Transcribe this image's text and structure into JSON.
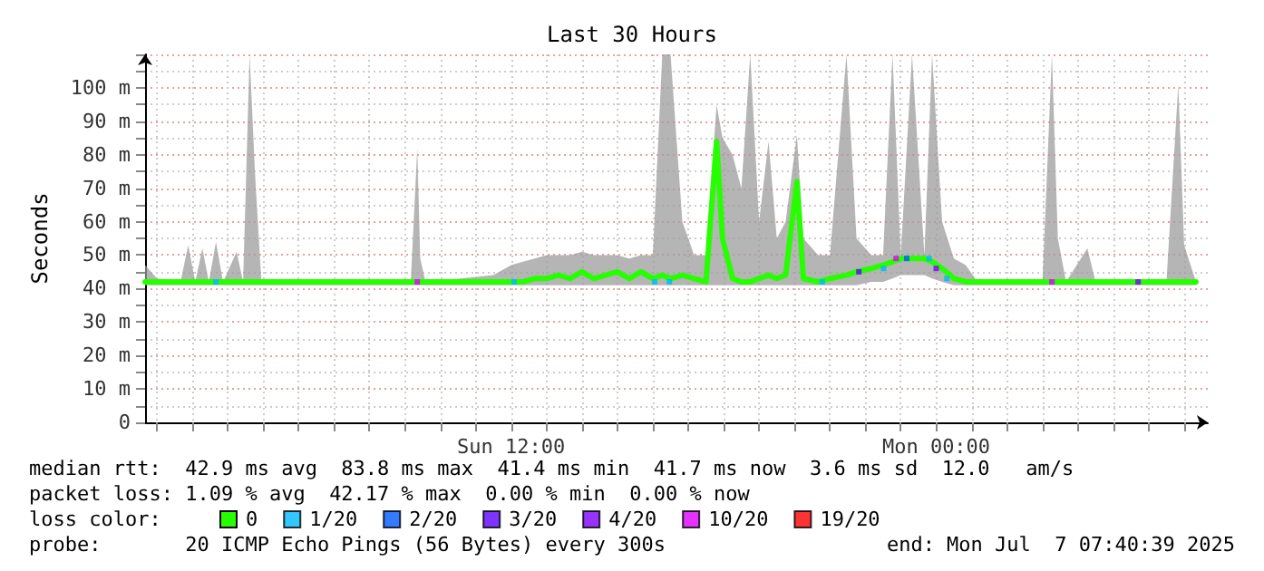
{
  "chart_data": {
    "type": "line",
    "title": "Last 30 Hours",
    "ylabel": "Seconds",
    "legend_title": "loss color:",
    "legend": "bottom",
    "grid": true,
    "line_style": "solid",
    "xlim": [
      "2025-07-06T01:40",
      "2025-07-07T07:40"
    ],
    "xticks": [
      {
        "value": "2025-07-06T02:00",
        "label": null
      },
      {
        "value": "2025-07-06T03:00",
        "label": null
      },
      {
        "value": "2025-07-06T04:00",
        "label": null
      },
      {
        "value": "2025-07-06T05:00",
        "label": null
      },
      {
        "value": "2025-07-06T06:00",
        "label": null
      },
      {
        "value": "2025-07-06T07:00",
        "label": null
      },
      {
        "value": "2025-07-06T08:00",
        "label": null
      },
      {
        "value": "2025-07-06T09:00",
        "label": null
      },
      {
        "value": "2025-07-06T10:00",
        "label": null
      },
      {
        "value": "2025-07-06T11:00",
        "label": null
      },
      {
        "value": "2025-07-06T12:00",
        "label": "Sun 12:00"
      },
      {
        "value": "2025-07-06T13:00",
        "label": null
      },
      {
        "value": "2025-07-06T14:00",
        "label": null
      },
      {
        "value": "2025-07-06T15:00",
        "label": null
      },
      {
        "value": "2025-07-06T16:00",
        "label": null
      },
      {
        "value": "2025-07-06T17:00",
        "label": null
      },
      {
        "value": "2025-07-06T18:00",
        "label": null
      },
      {
        "value": "2025-07-06T19:00",
        "label": null
      },
      {
        "value": "2025-07-06T20:00",
        "label": null
      },
      {
        "value": "2025-07-06T21:00",
        "label": null
      },
      {
        "value": "2025-07-06T22:00",
        "label": null
      },
      {
        "value": "2025-07-06T23:00",
        "label": null
      },
      {
        "value": "2025-07-07T00:00",
        "label": "Mon 00:00"
      },
      {
        "value": "2025-07-07T01:00",
        "label": null
      },
      {
        "value": "2025-07-07T02:00",
        "label": null
      },
      {
        "value": "2025-07-07T03:00",
        "label": null
      },
      {
        "value": "2025-07-07T04:00",
        "label": null
      },
      {
        "value": "2025-07-07T05:00",
        "label": null
      },
      {
        "value": "2025-07-07T06:00",
        "label": null
      },
      {
        "value": "2025-07-07T07:00",
        "label": null
      }
    ],
    "ylim": [
      0,
      110
    ],
    "yticks": [
      0,
      {
        "value": 5,
        "label": null
      },
      {
        "value": 10,
        "label": "10 m"
      },
      {
        "value": 15,
        "label": null
      },
      {
        "value": 20,
        "label": "20 m"
      },
      {
        "value": 25,
        "label": null
      },
      {
        "value": 30,
        "label": "30 m"
      },
      {
        "value": 35,
        "label": null
      },
      {
        "value": 40,
        "label": "40 m"
      },
      {
        "value": 45,
        "label": null
      },
      {
        "value": 50,
        "label": "50 m"
      },
      {
        "value": 55,
        "label": null
      },
      {
        "value": 60,
        "label": "60 m"
      },
      {
        "value": 65,
        "label": null
      },
      {
        "value": 70,
        "label": "70 m"
      },
      {
        "value": 75,
        "label": null
      },
      {
        "value": 80,
        "label": "80 m"
      },
      {
        "value": 85,
        "label": null
      },
      {
        "value": 90,
        "label": "90 m"
      },
      {
        "value": 95,
        "label": null
      },
      {
        "value": 100,
        "label": "100 m"
      },
      {
        "value": 105,
        "label": null
      },
      {
        "value": 110,
        "label": null
      }
    ],
    "annotations": [
      "median rtt:  42.9 ms avg  83.8 ms max  41.4 ms min  41.7 ms now  3.6 ms sd  12.0   am/s",
      "packet loss: 1.09 % avg  42.17 % max  0.00 % min  0.00 % now",
      "probe:       20 ICMP Echo Pings (56 Bytes) every 300s",
      "end: Mon Jul  7 07:40:39 2025"
    ],
    "series": [
      {
        "name": "0",
        "color": "#26ff00",
        "marker": "none",
        "x": [
          "2025-07-06T01:40",
          "2025-07-06T02:00",
          "2025-07-06T02:40",
          "2025-07-06T02:53",
          "2025-07-06T03:05",
          "2025-07-06T03:17",
          "2025-07-06T03:28",
          "2025-07-06T03:40",
          "2025-07-06T03:52",
          "2025-07-06T04:15",
          "2025-07-06T04:26",
          "2025-07-06T04:37",
          "2025-07-06T04:46",
          "2025-07-06T04:57",
          "2025-07-06T07:00",
          "2025-07-06T09:10",
          "2025-07-06T09:21",
          "2025-07-06T09:26",
          "2025-07-06T09:35",
          "2025-07-06T11:30",
          "2025-07-06T12:00",
          "2025-07-06T12:20",
          "2025-07-06T12:40",
          "2025-07-06T13:00",
          "2025-07-06T13:20",
          "2025-07-06T13:40",
          "2025-07-06T14:00",
          "2025-07-06T14:20",
          "2025-07-06T14:40",
          "2025-07-06T15:00",
          "2025-07-06T15:20",
          "2025-07-06T15:40",
          "2025-07-06T16:00",
          "2025-07-06T16:16",
          "2025-07-06T16:30",
          "2025-07-06T16:50",
          "2025-07-06T17:10",
          "2025-07-06T17:30",
          "2025-07-06T17:48",
          "2025-07-06T17:58",
          "2025-07-06T18:15",
          "2025-07-06T18:30",
          "2025-07-06T18:45",
          "2025-07-06T19:00",
          "2025-07-06T19:16",
          "2025-07-06T19:30",
          "2025-07-06T19:45",
          "2025-07-06T20:04",
          "2025-07-06T20:15",
          "2025-07-06T20:40",
          "2025-07-06T21:00",
          "2025-07-06T21:28",
          "2025-07-06T21:45",
          "2025-07-06T22:10",
          "2025-07-06T22:30",
          "2025-07-06T22:46",
          "2025-07-06T23:00",
          "2025-07-06T23:19",
          "2025-07-06T23:40",
          "2025-07-06T23:53",
          "2025-07-07T00:10",
          "2025-07-07T00:30",
          "2025-07-07T00:50",
          "2025-07-07T01:10",
          "2025-07-07T03:00",
          "2025-07-07T03:16",
          "2025-07-07T03:26",
          "2025-07-07T03:40",
          "2025-07-07T04:16",
          "2025-07-07T04:30",
          "2025-07-07T06:30",
          "2025-07-07T06:50",
          "2025-07-07T07:00",
          "2025-07-07T07:20"
        ],
        "values": [
          42,
          42,
          42,
          42,
          42,
          42,
          42,
          42,
          42,
          42,
          42,
          42,
          42,
          42,
          42,
          42,
          42,
          42,
          42,
          42,
          42,
          42,
          43,
          43,
          44,
          43,
          45,
          43,
          44,
          45,
          43,
          45,
          43,
          44,
          43,
          44,
          43,
          42,
          84,
          55,
          43,
          42,
          42,
          43,
          44,
          43,
          44,
          72,
          43,
          42,
          43,
          44,
          45,
          46,
          47,
          48,
          49,
          49,
          49,
          48,
          46,
          43,
          42,
          42,
          42,
          42,
          42,
          42,
          42,
          42,
          42,
          42,
          42,
          42
        ],
        "lower": [
          41,
          41,
          41,
          41,
          41,
          41,
          41,
          41,
          41,
          41,
          41,
          41,
          41,
          41,
          41,
          41,
          41,
          41,
          41,
          41,
          41,
          41,
          41,
          41,
          41,
          41,
          41,
          41,
          41,
          41,
          41,
          41,
          41,
          41,
          41,
          41,
          41,
          41,
          41,
          41,
          41,
          41,
          41,
          41,
          41,
          41,
          41,
          41,
          41,
          41,
          41,
          41,
          41,
          42,
          42,
          43,
          44,
          44,
          44,
          43,
          42,
          41,
          41,
          41,
          41,
          41,
          41,
          41,
          41,
          41,
          41,
          41,
          41,
          41
        ],
        "upper": [
          47,
          43,
          42,
          53,
          42,
          52,
          42,
          54,
          42,
          51,
          42,
          110,
          75,
          42,
          42,
          42,
          82,
          49,
          42,
          44,
          47,
          48,
          49,
          50,
          50,
          50,
          51,
          50,
          50,
          50,
          49,
          50,
          50,
          110,
          110,
          60,
          50,
          50,
          95,
          85,
          80,
          70,
          110,
          60,
          84,
          55,
          60,
          86,
          55,
          50,
          50,
          110,
          55,
          50,
          50,
          110,
          50,
          110,
          50,
          110,
          60,
          49,
          47,
          42,
          42,
          110,
          55,
          42,
          52,
          42,
          42,
          101,
          53,
          42
        ]
      },
      {
        "name": "1/20",
        "type": "scatter",
        "marker": "square",
        "color": "#00b8ff",
        "x": [
          "2025-07-06T03:40",
          "2025-07-06T12:05",
          "2025-07-06T16:03",
          "2025-07-06T16:28",
          "2025-07-06T20:47",
          "2025-07-06T22:31",
          "2025-07-06T23:48",
          "2025-07-07T00:18"
        ],
        "values": [
          42,
          42,
          42,
          42,
          42,
          46,
          49,
          43
        ]
      },
      {
        "name": "2/20",
        "type": "scatter",
        "marker": "square",
        "color": "#0059ff",
        "x": [
          "2025-07-06T23:10"
        ],
        "values": [
          49
        ]
      },
      {
        "name": "3/20",
        "type": "scatter",
        "marker": "square",
        "color": "#5e00ff",
        "x": [
          "2025-07-06T21:49"
        ],
        "values": [
          45
        ]
      },
      {
        "name": "4/20",
        "type": "scatter",
        "marker": "square",
        "color": "#7e00ff",
        "x": [
          "2025-07-07T00:00",
          "2025-07-07T05:42"
        ],
        "values": [
          46,
          42
        ]
      },
      {
        "name": "10/20",
        "type": "scatter",
        "marker": "square",
        "color": "#dd00ff",
        "x": [
          "2025-07-06T09:21",
          "2025-07-06T22:52",
          "2025-07-07T03:16"
        ],
        "values": [
          42,
          49,
          42
        ]
      },
      {
        "name": "19/20",
        "type": "scatter",
        "marker": "square",
        "color": "#ff0000"
      }
    ]
  }
}
